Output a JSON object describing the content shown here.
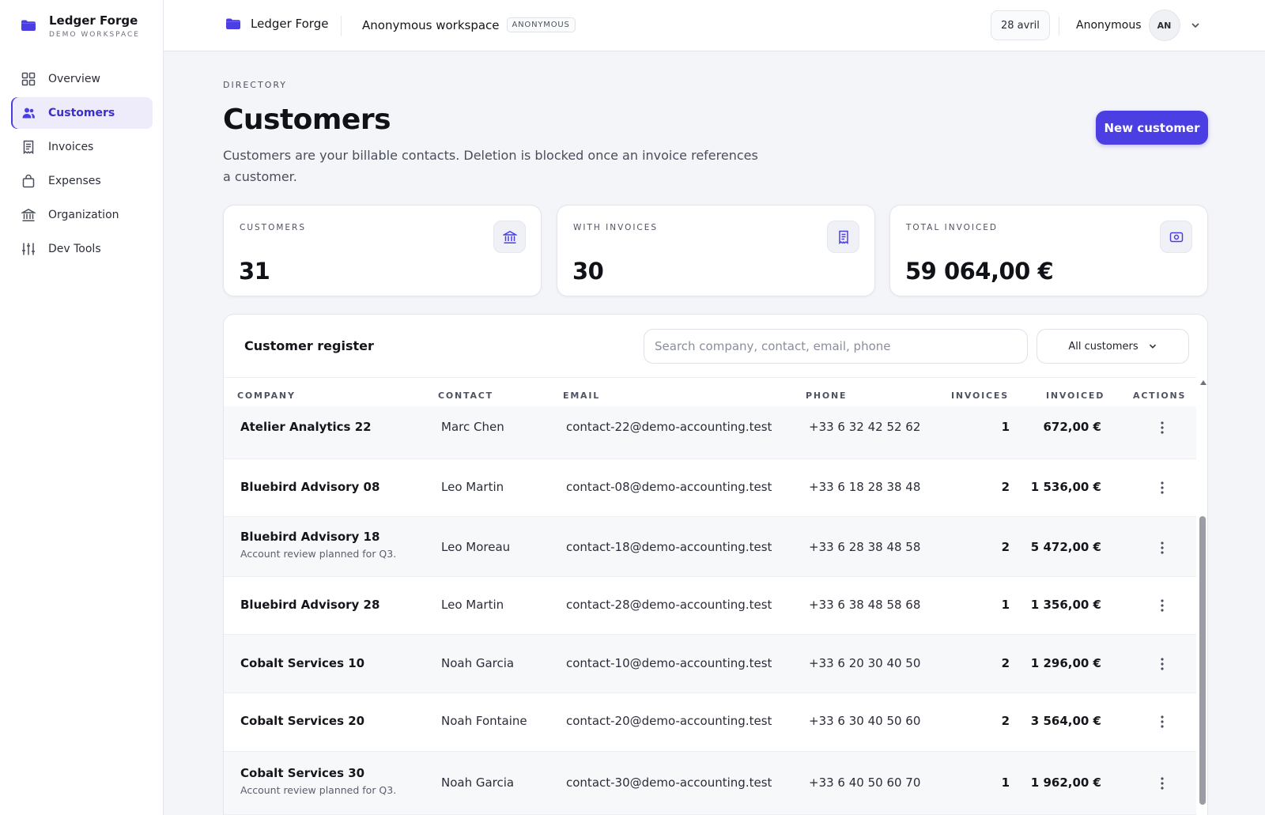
{
  "app": {
    "name": "Ledger Forge",
    "workspace_label": "DEMO WORKSPACE"
  },
  "sidebar": {
    "items": [
      {
        "label": "Overview",
        "icon": "grid-icon",
        "active": false
      },
      {
        "label": "Customers",
        "icon": "users-icon",
        "active": true
      },
      {
        "label": "Invoices",
        "icon": "receipt-icon",
        "active": false
      },
      {
        "label": "Expenses",
        "icon": "bag-icon",
        "active": false
      },
      {
        "label": "Organization",
        "icon": "bank-icon",
        "active": false
      },
      {
        "label": "Dev Tools",
        "icon": "sliders-icon",
        "active": false
      }
    ]
  },
  "topbar": {
    "brand": "Ledger Forge",
    "workspace": "Anonymous workspace",
    "badge": "ANONYMOUS",
    "date": "28 avril",
    "user": "Anonymous",
    "avatar_initials": "AN"
  },
  "header": {
    "eyebrow": "DIRECTORY",
    "title": "Customers",
    "description": "Customers are your billable contacts. Deletion is blocked once an invoice references a customer.",
    "new_button": "New customer"
  },
  "stats": [
    {
      "label": "CUSTOMERS",
      "value": "31",
      "icon": "bank-icon"
    },
    {
      "label": "WITH INVOICES",
      "value": "30",
      "icon": "receipt-icon"
    },
    {
      "label": "TOTAL INVOICED",
      "value": "59 064,00 €",
      "icon": "money-icon"
    }
  ],
  "register": {
    "title": "Customer register",
    "search_placeholder": "Search company, contact, email, phone",
    "filter": "All customers",
    "columns": [
      "COMPANY",
      "CONTACT",
      "EMAIL",
      "PHONE",
      "INVOICES",
      "INVOICED",
      "ACTIONS"
    ],
    "rows": [
      {
        "company": "Atelier Analytics 22",
        "note": "",
        "contact": "Marc Chen",
        "email": "contact-22@demo-accounting.test",
        "phone": "+33 6 32 42 52 62",
        "invoices": "1",
        "invoiced": "672,00 €"
      },
      {
        "company": "Bluebird Advisory 08",
        "note": "",
        "contact": "Leo Martin",
        "email": "contact-08@demo-accounting.test",
        "phone": "+33 6 18 28 38 48",
        "invoices": "2",
        "invoiced": "1 536,00 €"
      },
      {
        "company": "Bluebird Advisory 18",
        "note": "Account review planned for Q3.",
        "contact": "Leo Moreau",
        "email": "contact-18@demo-accounting.test",
        "phone": "+33 6 28 38 48 58",
        "invoices": "2",
        "invoiced": "5 472,00 €"
      },
      {
        "company": "Bluebird Advisory 28",
        "note": "",
        "contact": "Leo Martin",
        "email": "contact-28@demo-accounting.test",
        "phone": "+33 6 38 48 58 68",
        "invoices": "1",
        "invoiced": "1 356,00 €"
      },
      {
        "company": "Cobalt Services 10",
        "note": "",
        "contact": "Noah Garcia",
        "email": "contact-10@demo-accounting.test",
        "phone": "+33 6 20 30 40 50",
        "invoices": "2",
        "invoiced": "1 296,00 €"
      },
      {
        "company": "Cobalt Services 20",
        "note": "",
        "contact": "Noah Fontaine",
        "email": "contact-20@demo-accounting.test",
        "phone": "+33 6 30 40 50 60",
        "invoices": "2",
        "invoiced": "3 564,00 €"
      },
      {
        "company": "Cobalt Services 30",
        "note": "Account review planned for Q3.",
        "contact": "Noah Garcia",
        "email": "contact-30@demo-accounting.test",
        "phone": "+33 6 40 50 60 70",
        "invoices": "1",
        "invoiced": "1 962,00 €"
      }
    ]
  },
  "colors": {
    "accent": "#4b3fe4",
    "accent_light": "#eeecfb",
    "text": "#15161c",
    "muted": "#4f5362"
  }
}
